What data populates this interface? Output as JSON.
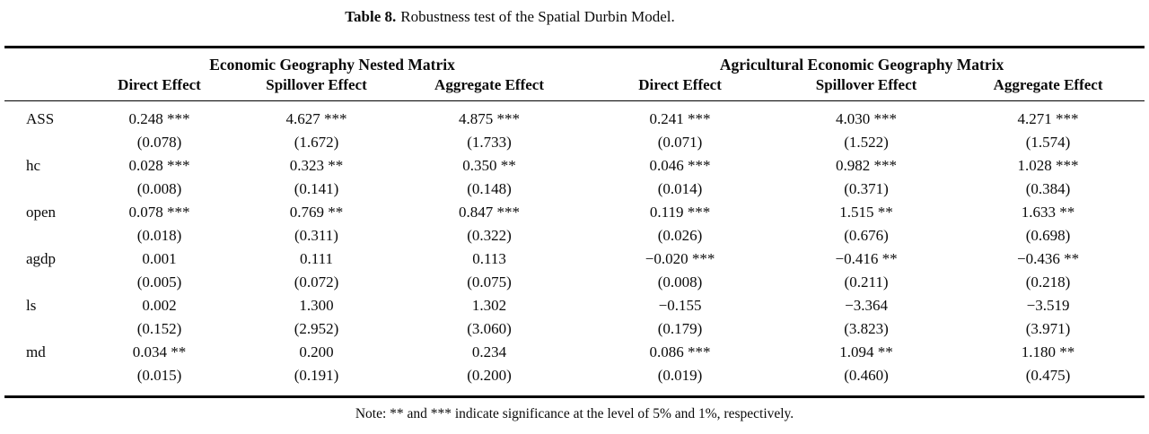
{
  "title": {
    "label": "Table 8.",
    "text": "Robustness test of the Spatial Durbin Model."
  },
  "table": {
    "groups": [
      {
        "label": "Economic Geography Nested Matrix",
        "columns": [
          "Direct Effect",
          "Spillover Effect",
          "Aggregate Effect"
        ]
      },
      {
        "label": "Agricultural Economic Geography Matrix",
        "columns": [
          "Direct Effect",
          "Spillover Effect",
          "Aggregate Effect"
        ]
      }
    ],
    "rows": [
      {
        "variable": "ASS",
        "coefficients": [
          "0.248 ***",
          "4.627 ***",
          "4.875 ***",
          "0.241 ***",
          "4.030 ***",
          "4.271 ***"
        ],
        "std_errors": [
          "(0.078)",
          "(1.672)",
          "(1.733)",
          "(0.071)",
          "(1.522)",
          "(1.574)"
        ]
      },
      {
        "variable": "hc",
        "coefficients": [
          "0.028 ***",
          "0.323 **",
          "0.350 **",
          "0.046 ***",
          "0.982 ***",
          "1.028 ***"
        ],
        "std_errors": [
          "(0.008)",
          "(0.141)",
          "(0.148)",
          "(0.014)",
          "(0.371)",
          "(0.384)"
        ]
      },
      {
        "variable": "open",
        "coefficients": [
          "0.078 ***",
          "0.769 **",
          "0.847 ***",
          "0.119 ***",
          "1.515 **",
          "1.633 **"
        ],
        "std_errors": [
          "(0.018)",
          "(0.311)",
          "(0.322)",
          "(0.026)",
          "(0.676)",
          "(0.698)"
        ]
      },
      {
        "variable": "agdp",
        "coefficients": [
          "0.001",
          "0.111",
          "0.113",
          "−0.020 ***",
          "−0.416 **",
          "−0.436 **"
        ],
        "std_errors": [
          "(0.005)",
          "(0.072)",
          "(0.075)",
          "(0.008)",
          "(0.211)",
          "(0.218)"
        ]
      },
      {
        "variable": "ls",
        "coefficients": [
          "0.002",
          "1.300",
          "1.302",
          "−0.155",
          "−3.364",
          "−3.519"
        ],
        "std_errors": [
          "(0.152)",
          "(2.952)",
          "(3.060)",
          "(0.179)",
          "(3.823)",
          "(3.971)"
        ]
      },
      {
        "variable": "md",
        "coefficients": [
          "0.034 **",
          "0.200",
          "0.234",
          "0.086 ***",
          "1.094 **",
          "1.180 **"
        ],
        "std_errors": [
          "(0.015)",
          "(0.191)",
          "(0.200)",
          "(0.019)",
          "(0.460)",
          "(0.475)"
        ]
      }
    ]
  },
  "note": "Note: ** and *** indicate significance at the level of 5% and 1%, respectively.",
  "colors": {
    "text": "#0a0a0a",
    "background": "#ffffff",
    "rule": "#000000"
  }
}
